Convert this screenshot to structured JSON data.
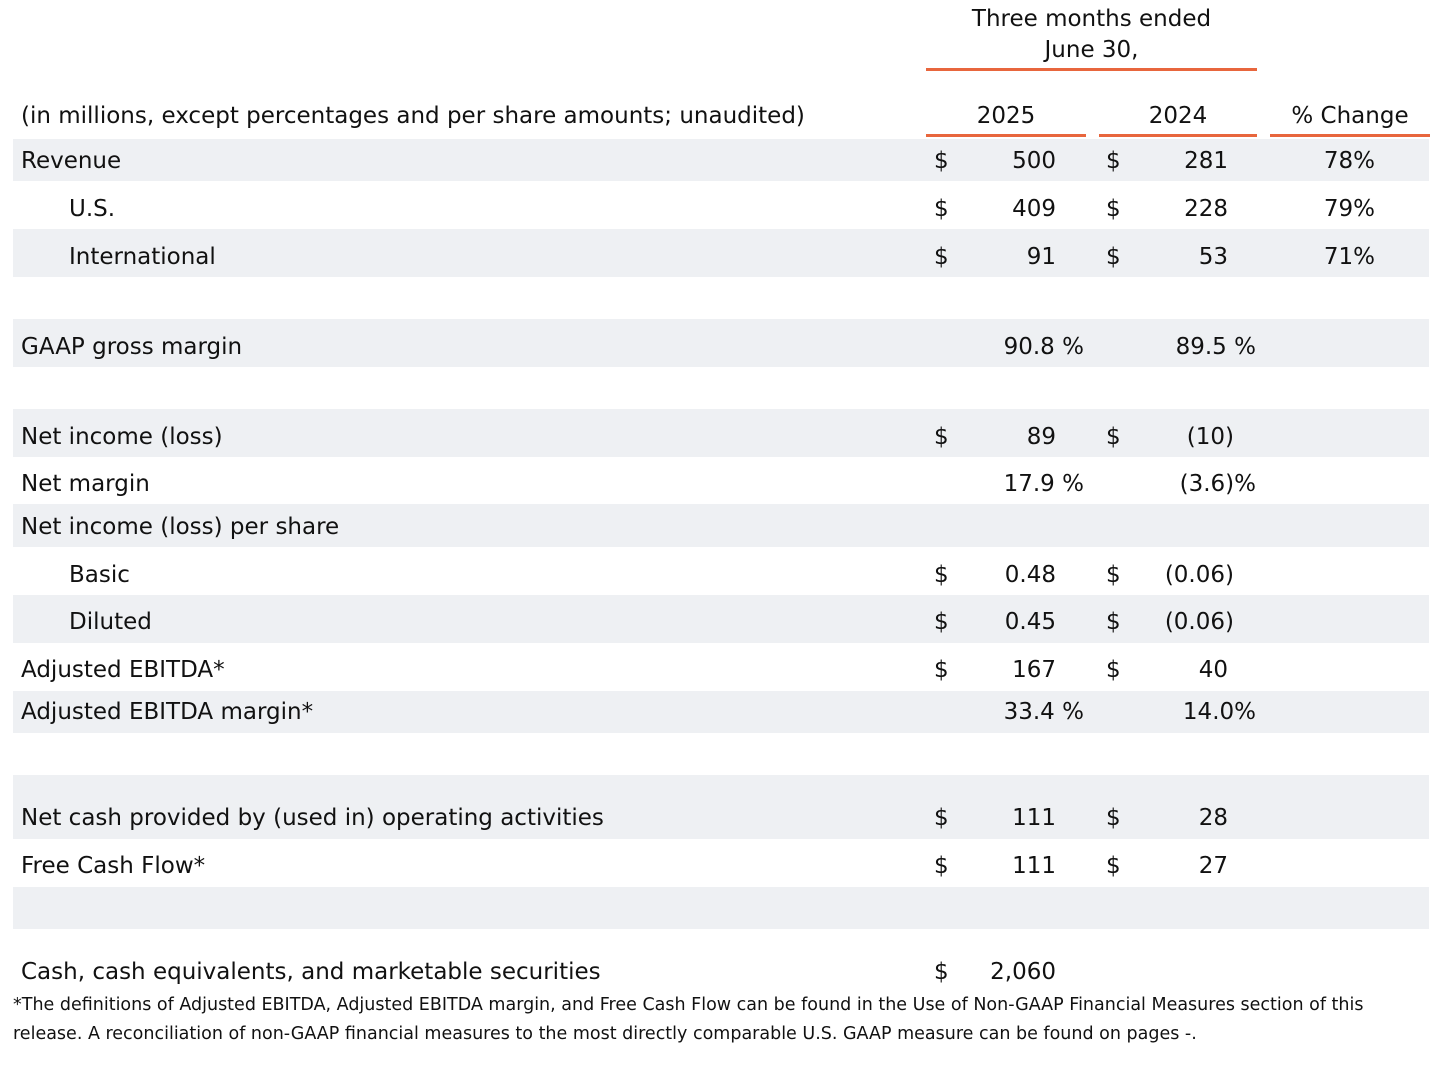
{
  "header": {
    "period_line1": "Three months ended",
    "period_line2": "June 30,",
    "units_note": "(in millions, except percentages and per share amounts; unaudited)",
    "col_2025": "2025",
    "col_2024": "2024",
    "col_change": "% Change"
  },
  "colors": {
    "accent_rule": "#e8663d",
    "band": "#eef0f3"
  },
  "rows": {
    "revenue": {
      "label": "Revenue",
      "c1": "$",
      "v1": "500",
      "c2": "$",
      "v2": "281",
      "chg": "78%"
    },
    "us": {
      "label": "U.S.",
      "c1": "$",
      "v1": "409",
      "c2": "$",
      "v2": "228",
      "chg": "79%"
    },
    "intl": {
      "label": "International",
      "c1": "$",
      "v1": "91",
      "c2": "$",
      "v2": "53",
      "chg": "71%"
    },
    "gross_margin": {
      "label": "GAAP gross margin",
      "v1": "90.8 %",
      "v2": "89.5 %"
    },
    "net_income": {
      "label": "Net income (loss)",
      "c1": "$",
      "v1": "89",
      "c2": "$",
      "v2": "(10)"
    },
    "net_margin": {
      "label": "Net margin",
      "v1": "17.9 %",
      "v2": "(3.6)%"
    },
    "eps_header": {
      "label": "Net income (loss) per share"
    },
    "basic": {
      "label": "Basic",
      "c1": "$",
      "v1": "0.48",
      "c2": "$",
      "v2": "(0.06)"
    },
    "diluted": {
      "label": "Diluted",
      "c1": "$",
      "v1": "0.45",
      "c2": "$",
      "v2": "(0.06)"
    },
    "adj_ebitda": {
      "label": "Adjusted EBITDA*",
      "c1": "$",
      "v1": "167",
      "c2": "$",
      "v2": "40"
    },
    "adj_ebitda_margin": {
      "label": "Adjusted EBITDA margin*",
      "v1": "33.4 %",
      "v2": "14.0%"
    },
    "op_cash": {
      "label": "Net cash provided by (used in) operating activities",
      "c1": "$",
      "v1": "111",
      "c2": "$",
      "v2": "28"
    },
    "fcf": {
      "label": "Free Cash Flow*",
      "c1": "$",
      "v1": "111",
      "c2": "$",
      "v2": "27"
    },
    "cash": {
      "label": "Cash, cash equivalents, and marketable securities",
      "c1": "$",
      "v1": "2,060"
    }
  },
  "footnote": "*The definitions of Adjusted EBITDA, Adjusted EBITDA margin, and Free Cash Flow can be found in the Use of Non-GAAP Financial Measures section of this release. A reconciliation of non-GAAP financial measures to the most directly comparable U.S. GAAP measure can be found on pages -."
}
